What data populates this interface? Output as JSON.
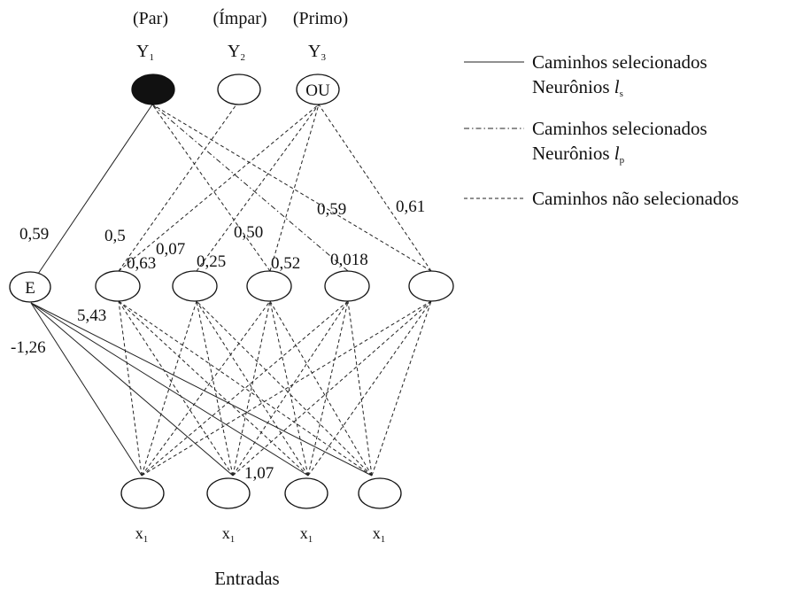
{
  "outputs": [
    {
      "category": "(Par)",
      "name": "Y",
      "sub": "1",
      "node_text": ""
    },
    {
      "category": "(Ímpar)",
      "name": "Y",
      "sub": "2",
      "node_text": ""
    },
    {
      "category": "(Primo)",
      "name": "Y",
      "sub": "3",
      "node_text": "OU"
    }
  ],
  "hidden_nodes": [
    {
      "node_text": "E"
    },
    {
      "node_text": ""
    },
    {
      "node_text": ""
    },
    {
      "node_text": ""
    },
    {
      "node_text": ""
    },
    {
      "node_text": ""
    }
  ],
  "inputs": [
    {
      "name": "x",
      "sub": "1"
    },
    {
      "name": "x",
      "sub": "1"
    },
    {
      "name": "x",
      "sub": "1"
    },
    {
      "name": "x",
      "sub": "1"
    }
  ],
  "inputs_title": "Entradas",
  "weights": {
    "w1": "0,59",
    "w2": "0,5",
    "w3": "0,63",
    "w4": "0,07",
    "w5": "0,25",
    "w6": "0,50",
    "w7": "0,52",
    "w8": "0,59",
    "w9": "0,61",
    "w10": "0,018",
    "w11": "5,43",
    "w12": "-1,26",
    "w13": "1,07"
  },
  "legend": [
    {
      "line_style": "solid",
      "line1": "Caminhos selecionados",
      "line2": "Neurônios ",
      "italic": "l",
      "sub": "s"
    },
    {
      "line_style": "dashdot",
      "line1": "Caminhos selecionados",
      "line2": "Neurônios ",
      "italic": "l",
      "sub": "p"
    },
    {
      "line_style": "dashed",
      "line1": "Caminhos não selecionados",
      "line2": "",
      "italic": "",
      "sub": ""
    }
  ],
  "colors": {
    "ink": "#111111",
    "background": "#ffffff"
  }
}
